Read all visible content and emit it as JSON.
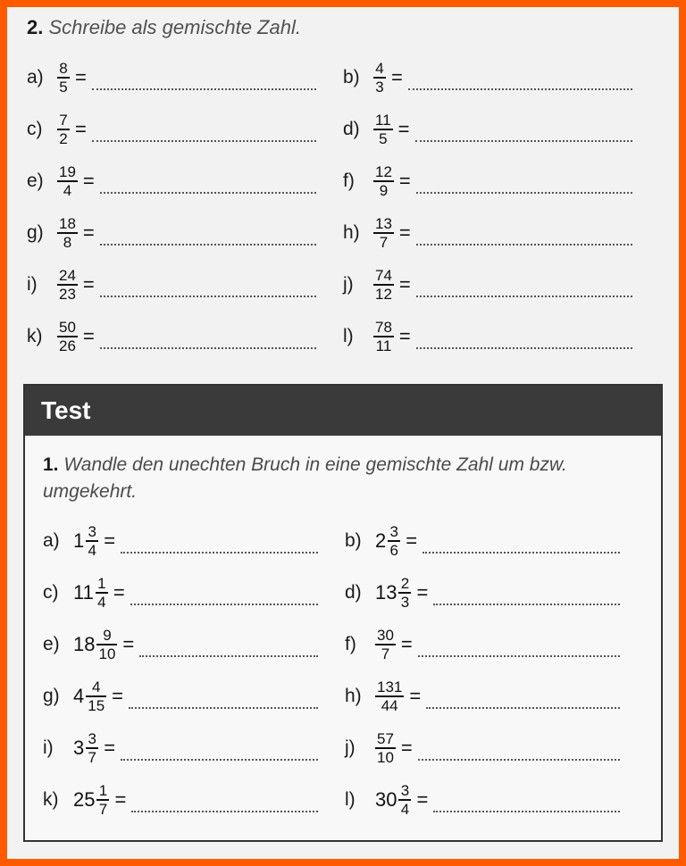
{
  "colors": {
    "page_border": "#ff5a00",
    "page_bg": "#f2f2f2",
    "text": "#1a1a1a",
    "instruction_text": "#515151",
    "dots": "#555555",
    "test_header_bg": "#3a3a3a",
    "test_header_text": "#ffffff",
    "test_border": "#333333",
    "test_bg": "#f8f8f8"
  },
  "typography": {
    "family": "Arial",
    "instruction_size_pt": 16,
    "label_size_pt": 15,
    "fraction_size_pt": 13,
    "test_header_size_pt": 20
  },
  "section2": {
    "number": "2.",
    "instruction": "Schreibe als gemischte Zahl.",
    "items": [
      {
        "label": "a)",
        "frac": {
          "n": "8",
          "d": "5"
        }
      },
      {
        "label": "b)",
        "frac": {
          "n": "4",
          "d": "3"
        }
      },
      {
        "label": "c)",
        "frac": {
          "n": "7",
          "d": "2"
        }
      },
      {
        "label": "d)",
        "frac": {
          "n": "11",
          "d": "5"
        }
      },
      {
        "label": "e)",
        "frac": {
          "n": "19",
          "d": "4"
        }
      },
      {
        "label": "f)",
        "frac": {
          "n": "12",
          "d": "9"
        }
      },
      {
        "label": "g)",
        "frac": {
          "n": "18",
          "d": "8"
        }
      },
      {
        "label": "h)",
        "frac": {
          "n": "13",
          "d": "7"
        }
      },
      {
        "label": "i)",
        "frac": {
          "n": "24",
          "d": "23"
        }
      },
      {
        "label": "j)",
        "frac": {
          "n": "74",
          "d": "12"
        }
      },
      {
        "label": "k)",
        "frac": {
          "n": "50",
          "d": "26"
        }
      },
      {
        "label": "l)",
        "frac": {
          "n": "78",
          "d": "11"
        }
      }
    ]
  },
  "test": {
    "header": "Test",
    "number": "1.",
    "instruction": "Wandle den unechten Bruch in eine gemischte Zahl um bzw. umgekehrt.",
    "items": [
      {
        "label": "a)",
        "mixed": {
          "w": "1",
          "n": "3",
          "d": "4"
        }
      },
      {
        "label": "b)",
        "mixed": {
          "w": "2",
          "n": "3",
          "d": "6"
        }
      },
      {
        "label": "c)",
        "mixed": {
          "w": "11",
          "n": "1",
          "d": "4"
        }
      },
      {
        "label": "d)",
        "mixed": {
          "w": "13",
          "n": "2",
          "d": "3"
        }
      },
      {
        "label": "e)",
        "mixed": {
          "w": "18",
          "n": "9",
          "d": "10"
        }
      },
      {
        "label": "f)",
        "frac": {
          "n": "30",
          "d": "7"
        }
      },
      {
        "label": "g)",
        "mixed": {
          "w": "4",
          "n": "4",
          "d": "15"
        }
      },
      {
        "label": "h)",
        "frac": {
          "n": "131",
          "d": "44"
        }
      },
      {
        "label": "i)",
        "mixed": {
          "w": "3",
          "n": "3",
          "d": "7"
        }
      },
      {
        "label": "j)",
        "frac": {
          "n": "57",
          "d": "10"
        }
      },
      {
        "label": "k)",
        "mixed": {
          "w": "25",
          "n": "1",
          "d": "7"
        }
      },
      {
        "label": "l)",
        "mixed": {
          "w": "30",
          "n": "3",
          "d": "4"
        }
      }
    ]
  }
}
